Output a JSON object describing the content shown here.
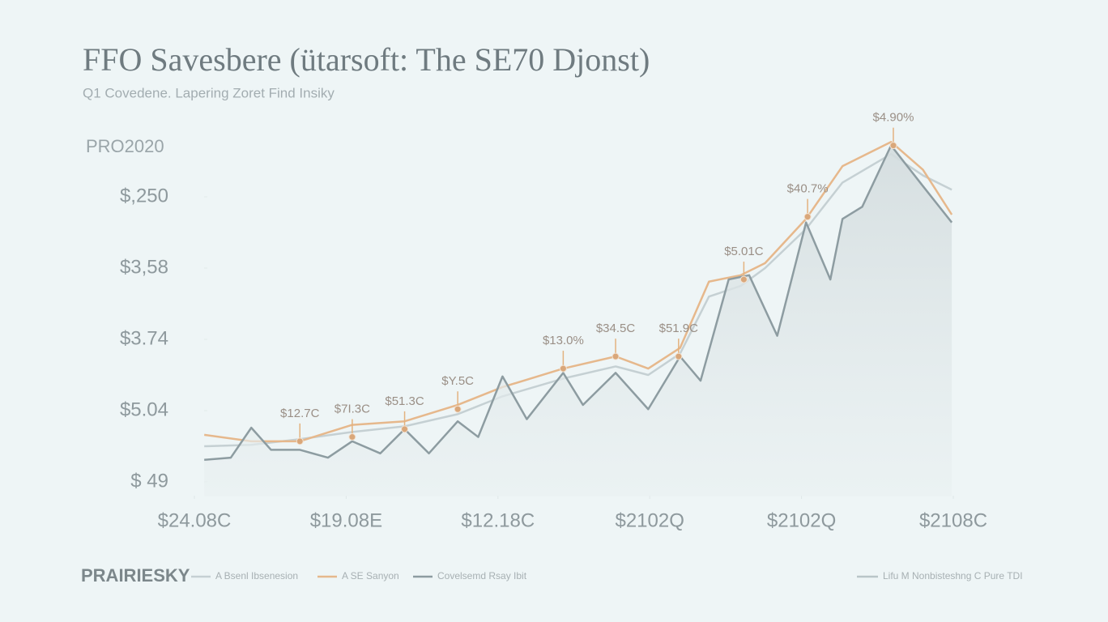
{
  "chart_data": {
    "type": "line",
    "title": "FFO Savesbere (ütarsoft: The SE70 Djonst)",
    "subtitle": "Q1 Covedene. Lapering Zoret Find Insiky",
    "y_label": "PRO2020",
    "brand": "PRAIRIESKY",
    "ylim": [
      -0.2,
      5
    ],
    "yticks": [
      {
        "value": 0,
        "label": "$ 49"
      },
      {
        "value": 1,
        "label": "$5.04"
      },
      {
        "value": 2,
        "label": "$3.74"
      },
      {
        "value": 3,
        "label": "$3,58"
      },
      {
        "value": 4,
        "label": "$,250"
      }
    ],
    "xlim": [
      0,
      100
    ],
    "xticks": [
      {
        "value": 0,
        "label": "$24.08C"
      },
      {
        "value": 20,
        "label": "$19.08E"
      },
      {
        "value": 40,
        "label": "$12.18C"
      },
      {
        "value": 60,
        "label": "$2102Q"
      },
      {
        "value": 80,
        "label": "$2102Q"
      },
      {
        "value": 100,
        "label": "$2108C"
      }
    ],
    "series": [
      {
        "name": "A Bsenl Ibsenesion",
        "color": "#c5d0d3",
        "x": [
          1.3,
          7.5,
          13.9,
          20.8,
          27.7,
          34.7,
          40.6,
          48.6,
          55.5,
          59.8,
          64,
          67.8,
          72,
          75.2,
          80.6,
          85.4,
          91.8,
          96,
          99.8
        ],
        "values": [
          0.5,
          0.52,
          0.6,
          0.7,
          0.78,
          0.95,
          1.2,
          1.45,
          1.62,
          1.5,
          1.8,
          2.6,
          2.75,
          3.0,
          3.55,
          4.2,
          4.6,
          4.3,
          4.1
        ]
      },
      {
        "name": "A SE Sanyon",
        "color": "#e6b88c",
        "x": [
          1.3,
          7.5,
          13.9,
          20.8,
          27.7,
          34.7,
          40.6,
          48.6,
          55.5,
          59.8,
          64,
          67.8,
          72,
          75.2,
          80.6,
          85.4,
          91.8,
          96,
          99.8
        ],
        "values": [
          0.66,
          0.57,
          0.57,
          0.8,
          0.85,
          1.08,
          1.33,
          1.59,
          1.76,
          1.59,
          1.88,
          2.81,
          2.9,
          3.07,
          3.69,
          4.43,
          4.77,
          4.38,
          3.75
        ]
      },
      {
        "name": "Covelsemd Rsay Ibit",
        "color": "#8d9ca1",
        "fill": true,
        "x": [
          1.3,
          4.8,
          7.5,
          10.1,
          13.9,
          17.6,
          20.8,
          24.5,
          27.7,
          30.9,
          34.7,
          37.4,
          40.6,
          43.8,
          48.6,
          51.2,
          55.5,
          59.8,
          64,
          66.7,
          70.4,
          73.1,
          76.8,
          80.6,
          83.8,
          85.4,
          88,
          91.8,
          96,
          99.8
        ],
        "values": [
          0.31,
          0.34,
          0.76,
          0.45,
          0.45,
          0.34,
          0.57,
          0.4,
          0.74,
          0.4,
          0.85,
          0.63,
          1.48,
          0.88,
          1.53,
          1.08,
          1.53,
          1.02,
          1.76,
          1.42,
          2.84,
          2.9,
          2.05,
          3.64,
          2.84,
          3.69,
          3.86,
          4.72,
          4.15,
          3.64
        ]
      }
    ],
    "extra_legend": "Lifu M Nonbisteshng C Pure TDI",
    "annotations": [
      {
        "label": "$12.7C",
        "x": 13.9,
        "y": 0.57
      },
      {
        "label": "$7I.3C",
        "x": 20.8,
        "y": 0.63
      },
      {
        "label": "$51.3C",
        "x": 27.7,
        "y": 0.74
      },
      {
        "label": "$Y.5C",
        "x": 34.7,
        "y": 1.02
      },
      {
        "label": "$13.0%",
        "x": 48.6,
        "y": 1.59
      },
      {
        "label": "$34.5C",
        "x": 55.5,
        "y": 1.76
      },
      {
        "label": "$51.9C",
        "x": 63.8,
        "y": 1.76
      },
      {
        "label": "$5.01C",
        "x": 72.4,
        "y": 2.84
      },
      {
        "label": "$40.7%",
        "x": 80.8,
        "y": 3.72
      },
      {
        "label": "$4.90%",
        "x": 92.1,
        "y": 4.72
      }
    ]
  }
}
